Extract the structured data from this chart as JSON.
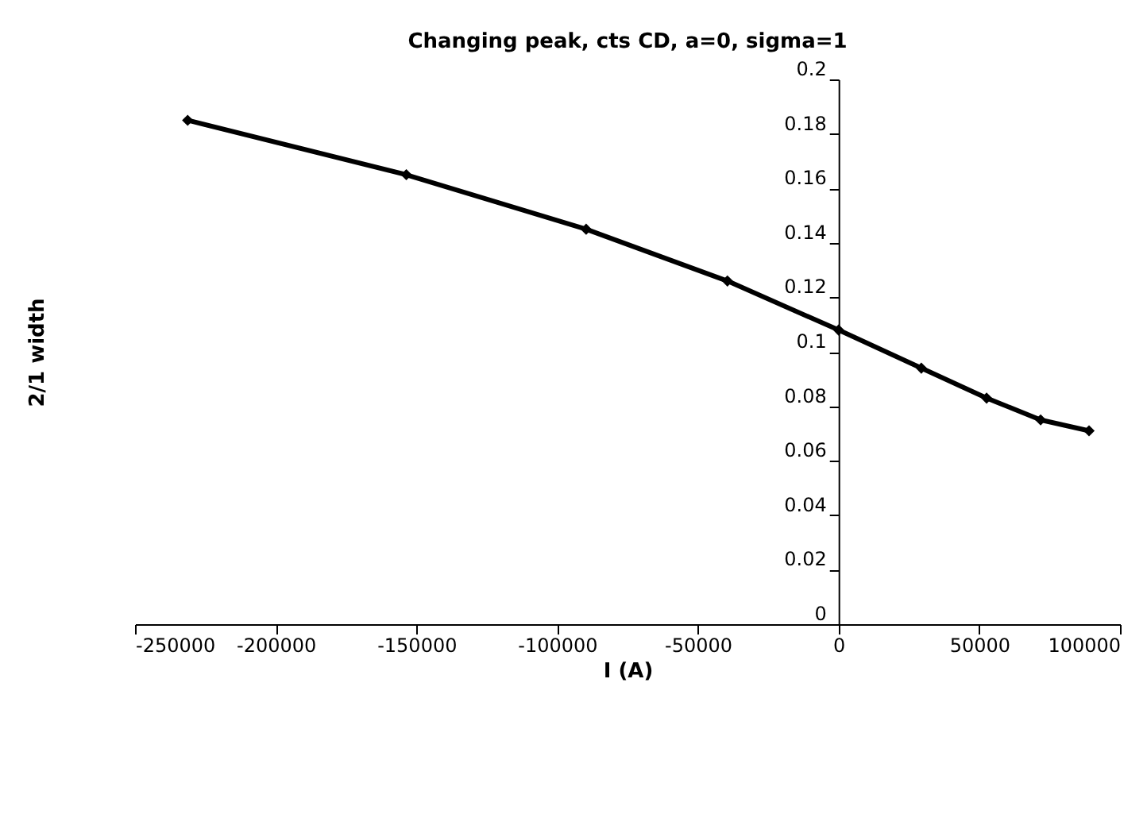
{
  "chart_data": {
    "type": "line",
    "title": "Changing peak, cts CD, a=0, sigma=1",
    "xlabel": "I (A)",
    "ylabel": "2/1 width",
    "x": [
      -231300,
      -153600,
      -89700,
      -39500,
      0,
      29400,
      52600,
      71800,
      89000
    ],
    "series": [
      {
        "color": "#000000",
        "values": [
          0.185,
          0.165,
          0.145,
          0.126,
          0.108,
          0.094,
          0.083,
          0.075,
          0.071
        ]
      }
    ],
    "xlim": [
      -250000,
      100000
    ],
    "xticks": [
      -250000,
      -200000,
      -150000,
      -100000,
      -50000,
      0,
      50000,
      100000
    ],
    "ylim": [
      0,
      0.2
    ],
    "yticks": [
      0,
      0.02,
      0.04,
      0.06,
      0.08,
      0.1,
      0.12,
      0.14,
      0.16,
      0.18,
      0.2
    ],
    "grid": false,
    "marker": "diamond",
    "line_style": "solid"
  }
}
